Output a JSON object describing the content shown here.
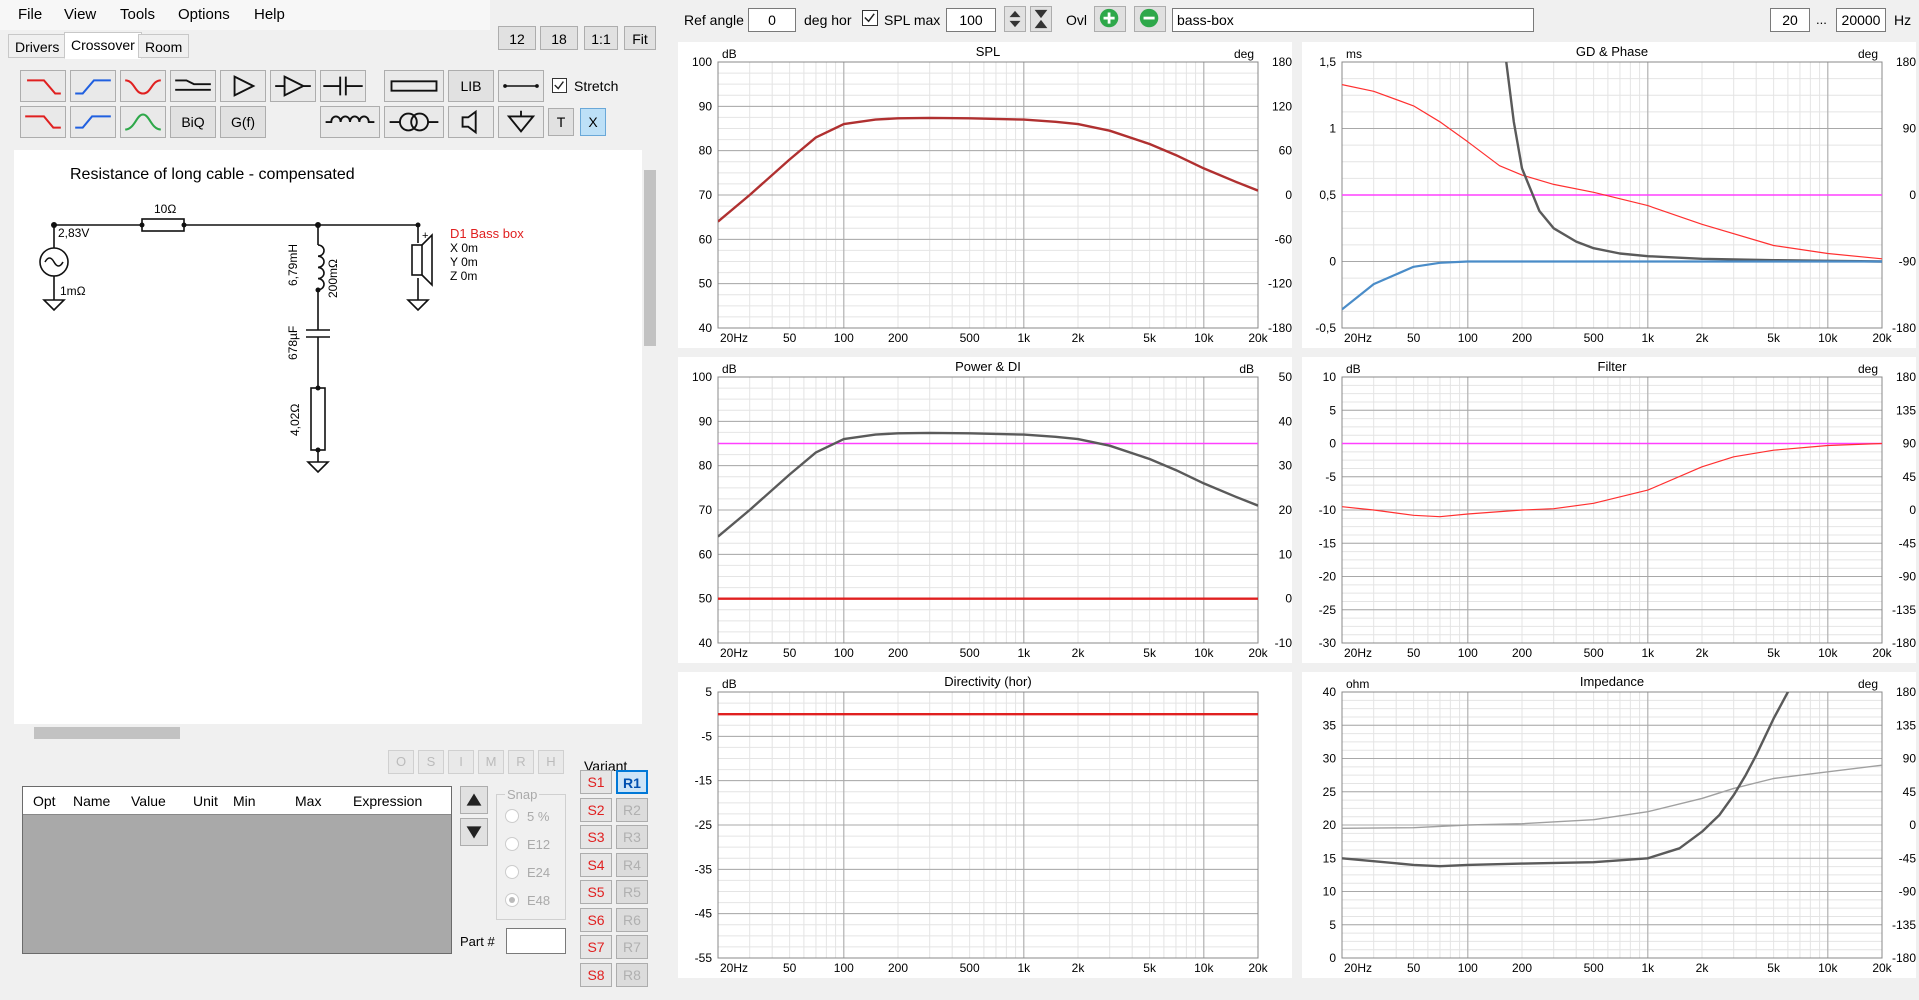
{
  "menu": [
    "File",
    "View",
    "Tools",
    "Options",
    "Help"
  ],
  "tabs": [
    "Drivers",
    "Crossover",
    "Room"
  ],
  "zoom_buttons": [
    "12",
    "18",
    "1:1",
    "Fit"
  ],
  "tool_labels": {
    "lib": "LIB",
    "biq": "BiQ",
    "gf": "G(f)",
    "t": "T",
    "x": "X"
  },
  "stretch_label": "Stretch",
  "schematic": {
    "title": "Resistance of long cable - compensated",
    "src_voltage": "2,83V",
    "src_res": "1mΩ",
    "r1": "10Ω",
    "l1": "6,79mH",
    "l1_res": "200mΩ",
    "c1": "678µF",
    "r2": "4,02Ω",
    "driver": "D1 Bass box",
    "dx": "X 0m",
    "dy": "Y 0m",
    "dz": "Z 0m",
    "plus": "+"
  },
  "opt_buttons": [
    "O",
    "S",
    "I",
    "M",
    "R",
    "H"
  ],
  "params_cols": [
    "Opt",
    "Name",
    "Value",
    "Unit",
    "Min",
    "Max",
    "Expression"
  ],
  "snap": {
    "label": "Snap",
    "options": [
      "5 %",
      "E12",
      "E24",
      "E48"
    ]
  },
  "part_label": "Part #",
  "variant": {
    "label": "Variant",
    "s": [
      "S1",
      "S2",
      "S3",
      "S4",
      "S5",
      "S6",
      "S7",
      "S8"
    ],
    "r": [
      "R1",
      "R2",
      "R3",
      "R4",
      "R5",
      "R6",
      "R7",
      "R8"
    ]
  },
  "topbar": {
    "ref_angle_label": "Ref angle",
    "ref_angle": "0",
    "deg_hor": "deg hor",
    "spl_max_label": "SPL max",
    "spl_max": "100",
    "ovl": "Ovl",
    "name": "bass-box",
    "f_from": "20",
    "ellipsis": "...",
    "f_to": "20000",
    "hz": "Hz"
  },
  "colors": {
    "dark_red": "#b03030",
    "red": "#e02020",
    "magenta": "#ff40ff",
    "grey": "#5a5a5a",
    "light_grey": "#a0a0a0",
    "blue": "#4a8cc8",
    "green": "#2ea84a"
  },
  "x_ticks": [
    "20Hz",
    "50",
    "100",
    "200",
    "500",
    "1k",
    "2k",
    "5k",
    "10k",
    "20k"
  ],
  "charts": [
    {
      "id": "spl",
      "title": "SPL",
      "lunit": "dB",
      "runit": "deg",
      "left": [
        "100",
        "90",
        "80",
        "70",
        "60",
        "50",
        "40"
      ],
      "right": [
        "180",
        "120",
        "60",
        "0",
        "-60",
        "-120",
        "-180"
      ],
      "ylim": [
        40,
        100
      ],
      "series": [
        {
          "color": "#b03030",
          "w": 2.4,
          "x": [
            20,
            30,
            50,
            70,
            100,
            150,
            200,
            300,
            500,
            800,
            1000,
            1500,
            2000,
            3000,
            5000,
            7000,
            10000,
            15000,
            20000
          ],
          "y": [
            64,
            70,
            78,
            83,
            86,
            87,
            87.3,
            87.4,
            87.3,
            87.1,
            87,
            86.5,
            86,
            84.5,
            81.5,
            79,
            76,
            73,
            71
          ]
        }
      ]
    },
    {
      "id": "gd",
      "title": "GD & Phase",
      "lunit": "ms",
      "runit": "deg",
      "left": [
        "1,5",
        "1",
        "0,5",
        "0",
        "-0,5"
      ],
      "right": [
        "180",
        "90",
        "0",
        "-90",
        "-180"
      ],
      "ylim": [
        -0.5,
        1.5
      ],
      "series": [
        {
          "color": "#ff40ff",
          "w": 1.5,
          "x": [
            20,
            20000
          ],
          "y": [
            0.5,
            0.5
          ]
        },
        {
          "color": "#ff3030",
          "w": 1.2,
          "x": [
            20,
            30,
            50,
            70,
            100,
            150,
            200,
            300,
            500,
            1000,
            2000,
            5000,
            10000,
            20000
          ],
          "y": [
            1.33,
            1.28,
            1.17,
            1.05,
            0.9,
            0.72,
            0.65,
            0.58,
            0.52,
            0.42,
            0.28,
            0.12,
            0.06,
            0.02
          ]
        },
        {
          "color": "#5a5a5a",
          "w": 2.4,
          "x": [
            160,
            180,
            200,
            250,
            300,
            400,
            500,
            700,
            1000,
            2000,
            5000,
            10000,
            20000
          ],
          "y": [
            1.6,
            1.05,
            0.7,
            0.38,
            0.25,
            0.15,
            0.1,
            0.06,
            0.04,
            0.02,
            0.01,
            0.005,
            0
          ]
        },
        {
          "color": "#4a8cc8",
          "w": 2.2,
          "x": [
            20,
            30,
            50,
            70,
            100,
            200,
            500,
            1000,
            20000
          ],
          "y": [
            -0.36,
            -0.17,
            -0.04,
            -0.01,
            0,
            0,
            0,
            0,
            0
          ]
        }
      ]
    },
    {
      "id": "power",
      "title": "Power & DI",
      "lunit": "dB",
      "runit": "dB",
      "left": [
        "100",
        "90",
        "80",
        "70",
        "60",
        "50",
        "40"
      ],
      "right": [
        "50",
        "40",
        "30",
        "20",
        "10",
        "0",
        "-10"
      ],
      "ylim": [
        40,
        100
      ],
      "series": [
        {
          "color": "#ff40ff",
          "w": 1.5,
          "x": [
            20,
            20000
          ],
          "y": [
            85,
            85
          ]
        },
        {
          "color": "#e02020",
          "w": 2.4,
          "x": [
            20,
            20000
          ],
          "y": [
            50,
            50
          ]
        },
        {
          "color": "#5a5a5a",
          "w": 2.4,
          "x": [
            20,
            30,
            50,
            70,
            100,
            150,
            200,
            300,
            500,
            800,
            1000,
            1500,
            2000,
            3000,
            5000,
            7000,
            10000,
            15000,
            20000
          ],
          "y": [
            64,
            70,
            78,
            83,
            86,
            87,
            87.3,
            87.4,
            87.3,
            87.1,
            87,
            86.5,
            86,
            84.5,
            81.5,
            79,
            76,
            73,
            71
          ]
        }
      ]
    },
    {
      "id": "filter",
      "title": "Filter",
      "lunit": "dB",
      "runit": "deg",
      "left": [
        "10",
        "5",
        "0",
        "-5",
        "-10",
        "-15",
        "-20",
        "-25",
        "-30"
      ],
      "right": [
        "180",
        "135",
        "90",
        "45",
        "0",
        "-45",
        "-90",
        "-135",
        "-180"
      ],
      "ylim": [
        -30,
        10
      ],
      "series": [
        {
          "color": "#ff40ff",
          "w": 1.5,
          "x": [
            20,
            20000
          ],
          "y": [
            0,
            0
          ]
        },
        {
          "color": "#ff3030",
          "w": 1.2,
          "x": [
            20,
            30,
            50,
            70,
            100,
            200,
            300,
            500,
            1000,
            2000,
            3000,
            5000,
            10000,
            20000
          ],
          "y": [
            -9.5,
            -10,
            -10.8,
            -11,
            -10.6,
            -10,
            -9.8,
            -9,
            -7,
            -3.5,
            -2,
            -1,
            -0.3,
            0
          ]
        }
      ]
    },
    {
      "id": "dir",
      "title": "Directivity (hor)",
      "lunit": "dB",
      "runit": "",
      "left": [
        "5",
        "-5",
        "-15",
        "-25",
        "-35",
        "-45",
        "-55"
      ],
      "right": [],
      "ylim": [
        -55,
        5
      ],
      "series": [
        {
          "color": "#e02020",
          "w": 2.4,
          "x": [
            20,
            20000
          ],
          "y": [
            0,
            0
          ]
        }
      ]
    },
    {
      "id": "imp",
      "title": "Impedance",
      "lunit": "ohm",
      "runit": "deg",
      "left": [
        "40",
        "35",
        "30",
        "25",
        "20",
        "15",
        "10",
        "5",
        "0"
      ],
      "right": [
        "180",
        "135",
        "90",
        "45",
        "0",
        "-45",
        "-90",
        "-135",
        "-180"
      ],
      "ylim": [
        0,
        40
      ],
      "series": [
        {
          "color": "#a0a0a0",
          "w": 1.4,
          "x": [
            20,
            50,
            100,
            200,
            500,
            1000,
            2000,
            3000,
            5000,
            10000,
            20000
          ],
          "y": [
            19.5,
            19.6,
            20,
            20.2,
            20.8,
            22,
            24,
            25.5,
            27,
            28,
            29
          ]
        },
        {
          "color": "#5a5a5a",
          "w": 2.4,
          "x": [
            20,
            50,
            70,
            100,
            200,
            500,
            1000,
            1500,
            2000,
            2500,
            3000,
            3500,
            4000,
            5000,
            6000,
            7000
          ],
          "y": [
            15,
            14,
            13.8,
            14,
            14.2,
            14.4,
            15,
            16.5,
            19,
            21.5,
            24.5,
            27.5,
            30.5,
            36,
            40,
            43
          ]
        }
      ]
    }
  ]
}
